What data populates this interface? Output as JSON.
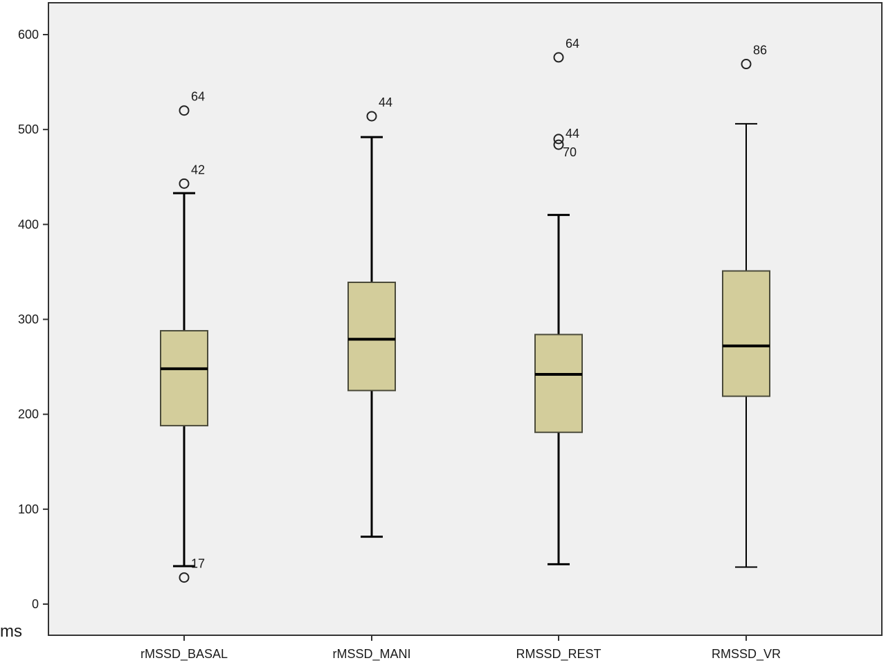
{
  "chart_data": {
    "type": "boxplot",
    "ylabel": "ms",
    "ylim": [
      0,
      620
    ],
    "yticks": [
      0,
      100,
      200,
      300,
      400,
      500,
      600
    ],
    "categories": [
      "rMSSD_BASAL",
      "rMSSD_MANI",
      "RMSSD_REST",
      "RMSSD_VR"
    ],
    "boxes": [
      {
        "category": "rMSSD_BASAL",
        "whisker_low": 40,
        "q1": 188,
        "median": 248,
        "q3": 288,
        "whisker_high": 433,
        "outliers": [
          {
            "value": 520,
            "label": "64"
          },
          {
            "value": 443,
            "label": "42"
          },
          {
            "value": 28,
            "label": "17"
          }
        ]
      },
      {
        "category": "rMSSD_MANI",
        "whisker_low": 71,
        "q1": 225,
        "median": 279,
        "q3": 339,
        "whisker_high": 492,
        "outliers": [
          {
            "value": 514,
            "label": "44"
          }
        ]
      },
      {
        "category": "RMSSD_REST",
        "whisker_low": 42,
        "q1": 181,
        "median": 242,
        "q3": 284,
        "whisker_high": 410,
        "outliers": [
          {
            "value": 576,
            "label": "64"
          },
          {
            "value": 490,
            "label": "44"
          },
          {
            "value": 484,
            "label": "70"
          }
        ]
      },
      {
        "category": "RMSSD_VR",
        "whisker_low": 39,
        "q1": 219,
        "median": 272,
        "q3": 351,
        "whisker_high": 506,
        "outliers": [
          {
            "value": 569,
            "label": "86"
          }
        ]
      }
    ],
    "colors": {
      "plot_bg": "#f0f0f0",
      "box_fill": "#d3cd9b",
      "box_stroke": "#4a4a3a",
      "line": "#000000"
    },
    "grid": false
  }
}
